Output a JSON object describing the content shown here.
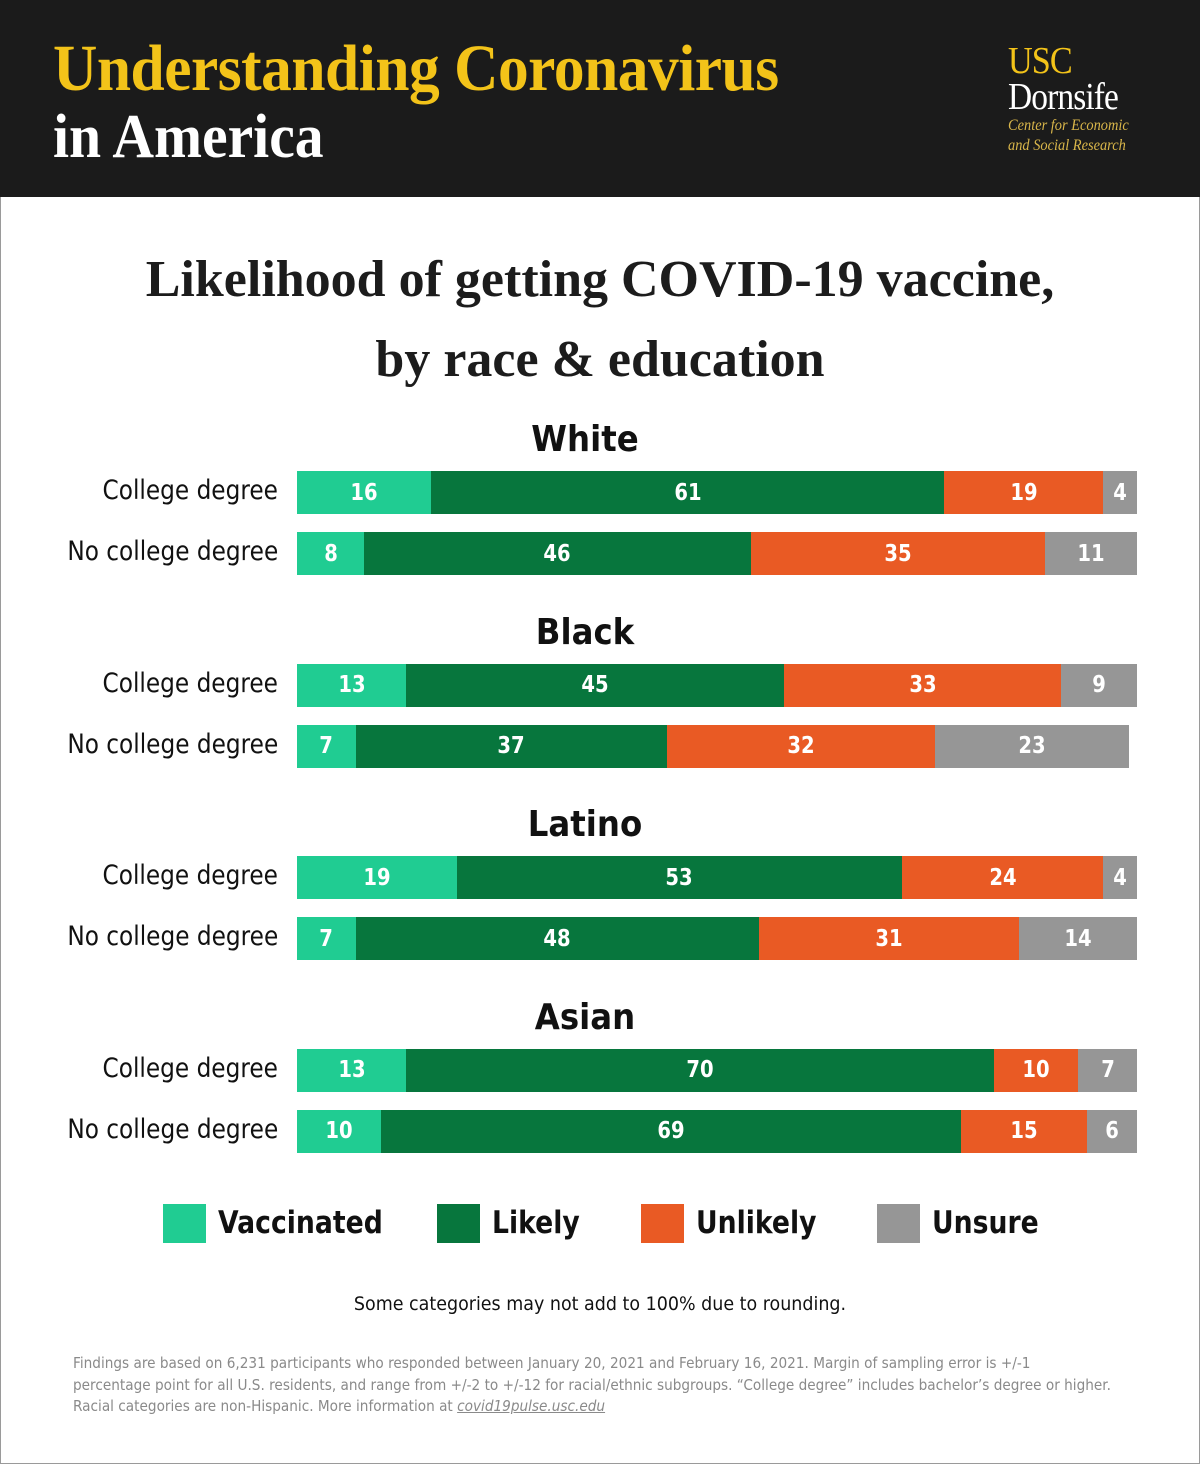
{
  "header": {
    "title_line1": "Understanding Coronavirus",
    "title_line2": "in America",
    "logo": {
      "usc": "USC",
      "dornsife": "Dornsife",
      "sub1": "Center for Economic",
      "sub2": "and Social Research"
    }
  },
  "colors": {
    "vaccinated": "#20cc92",
    "likely": "#07763d",
    "unlikely": "#e95a24",
    "unsure": "#969696",
    "header_bg": "#1b1b1b",
    "header_yellow": "#f3c319"
  },
  "chart_data": {
    "type": "bar",
    "orientation": "horizontal-stacked",
    "title": "Likelihood of getting COVID-19 vaccine,",
    "subtitle": "by race & education",
    "series_names": [
      "Vaccinated",
      "Likely",
      "Unlikely",
      "Unsure"
    ],
    "unit": "percent",
    "xlim": [
      0,
      100
    ],
    "grid": false,
    "legend_position": "bottom",
    "groups": [
      {
        "name": "White",
        "rows": [
          {
            "label": "College degree",
            "values": [
              16,
              61,
              19,
              4
            ]
          },
          {
            "label": "No college degree",
            "values": [
              8,
              46,
              35,
              11
            ]
          }
        ]
      },
      {
        "name": "Black",
        "rows": [
          {
            "label": "College degree",
            "values": [
              13,
              45,
              33,
              9
            ]
          },
          {
            "label": "No college degree",
            "values": [
              7,
              37,
              32,
              23
            ]
          }
        ]
      },
      {
        "name": "Latino",
        "rows": [
          {
            "label": "College degree",
            "values": [
              19,
              53,
              24,
              4
            ]
          },
          {
            "label": "No college degree",
            "values": [
              7,
              48,
              31,
              14
            ]
          }
        ]
      },
      {
        "name": "Asian",
        "rows": [
          {
            "label": "College degree",
            "values": [
              13,
              70,
              10,
              7
            ]
          },
          {
            "label": "No college degree",
            "values": [
              10,
              69,
              15,
              6
            ]
          }
        ]
      }
    ],
    "legend": [
      {
        "label": "Vaccinated",
        "color_key": "vaccinated"
      },
      {
        "label": "Likely",
        "color_key": "likely"
      },
      {
        "label": "Unlikely",
        "color_key": "unlikely"
      },
      {
        "label": "Unsure",
        "color_key": "unsure"
      }
    ],
    "annotation": "Some categories may not add to 100% due to rounding."
  },
  "footnote": {
    "text": "Findings are based on 6,231 participants who responded between January 20, 2021 and February 16, 2021. Margin of sampling error is +/-1 percentage point for all U.S. residents, and range from +/-2 to +/-12 for racial/ethnic subgroups. “College degree” includes bachelor’s degree or higher. Racial categories are non-Hispanic. More information at ",
    "link": "covid19pulse.usc.edu"
  }
}
